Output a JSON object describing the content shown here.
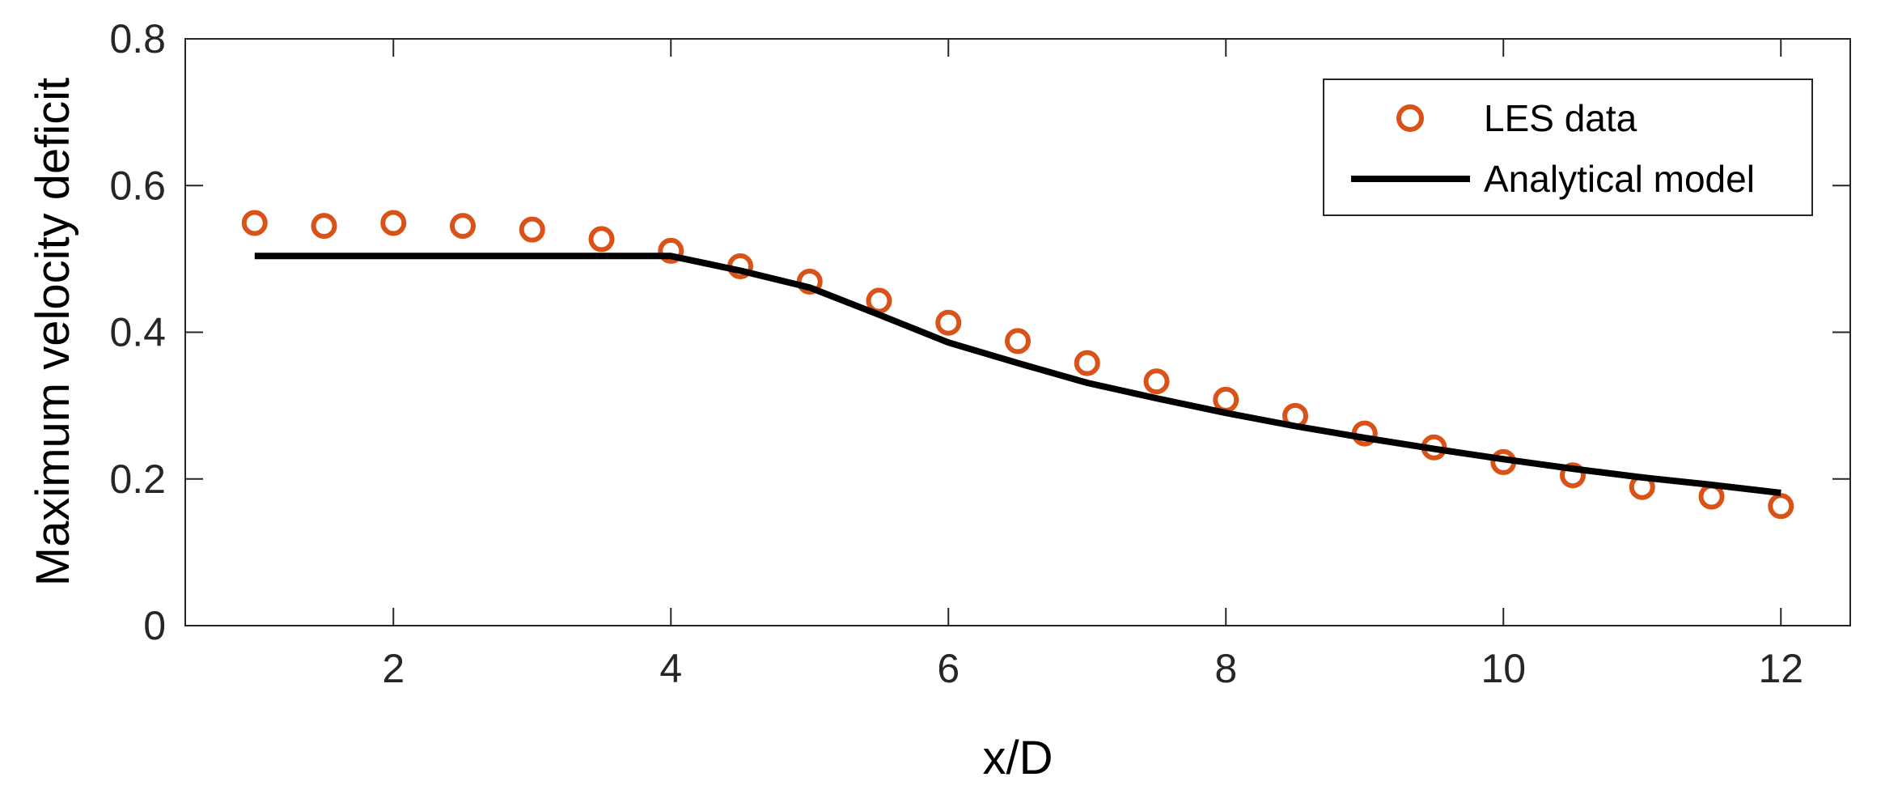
{
  "chart_data": {
    "type": "line",
    "title": "",
    "xlabel": "x/D",
    "ylabel": "Maximum velocity deficit",
    "xlim": [
      0.5,
      12.5
    ],
    "ylim": [
      0,
      0.8
    ],
    "xticks": [
      2,
      4,
      6,
      8,
      10,
      12
    ],
    "xtick_labels": [
      "2",
      "4",
      "6",
      "8",
      "10",
      "12"
    ],
    "yticks": [
      0,
      0.2,
      0.4,
      0.6,
      0.8
    ],
    "ytick_labels": [
      "0",
      "0.2",
      "0.4",
      "0.6",
      "0.8"
    ],
    "grid": false,
    "box": true,
    "legend_position": "top-right",
    "series": [
      {
        "name": "LES data",
        "style": "markers",
        "marker": "circle",
        "color": "#D95319",
        "x": [
          1,
          1.5,
          2,
          2.5,
          3,
          3.5,
          4,
          4.5,
          5,
          5.5,
          6,
          6.5,
          7,
          7.5,
          8,
          8.5,
          9,
          9.5,
          10,
          10.5,
          11,
          11.5,
          12
        ],
        "y": [
          0.549,
          0.545,
          0.549,
          0.545,
          0.54,
          0.527,
          0.511,
          0.49,
          0.469,
          0.443,
          0.413,
          0.388,
          0.358,
          0.333,
          0.308,
          0.286,
          0.262,
          0.243,
          0.223,
          0.205,
          0.189,
          0.176,
          0.163
        ]
      },
      {
        "name": "Analytical model",
        "style": "line",
        "color": "#000000",
        "x": [
          1,
          4,
          4.5,
          5,
          5.5,
          6,
          6.5,
          7,
          7.5,
          8,
          8.5,
          9,
          9.5,
          10,
          10.5,
          11,
          11.5,
          12
        ],
        "y": [
          0.504,
          0.504,
          0.484,
          0.461,
          0.424,
          0.386,
          0.358,
          0.331,
          0.31,
          0.29,
          0.272,
          0.256,
          0.241,
          0.227,
          0.214,
          0.202,
          0.192,
          0.181
        ]
      }
    ]
  }
}
